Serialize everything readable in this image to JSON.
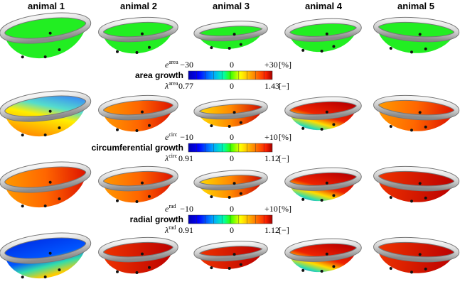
{
  "columns": [
    "animal 1",
    "animal 2",
    "animal 3",
    "animal 4",
    "animal 5"
  ],
  "legends": [
    {
      "title": "area growth",
      "top_symbol": "e",
      "top_sup": "area",
      "top_ticks": [
        "−30",
        "0",
        "+30"
      ],
      "top_unit": "[%]",
      "bottom_symbol": "λ",
      "bottom_sup": "area",
      "bottom_ticks": [
        "0.77",
        "0",
        "1.43"
      ],
      "bottom_unit": "[−]"
    },
    {
      "title": "circumferential growth",
      "top_symbol": "e",
      "top_sup": "circ",
      "top_ticks": [
        "−10",
        "0",
        "+10"
      ],
      "top_unit": "[%]",
      "bottom_symbol": "λ",
      "bottom_sup": "circ",
      "bottom_ticks": [
        "0.91",
        "0",
        "1.12"
      ],
      "bottom_unit": "[−]"
    },
    {
      "title": "radial growth",
      "top_symbol": "e",
      "top_sup": "rad",
      "top_ticks": [
        "−10",
        "0",
        "+10"
      ],
      "top_unit": "[%]",
      "bottom_symbol": "λ",
      "bottom_sup": "rad",
      "bottom_ticks": [
        "0.91",
        "0",
        "1.12"
      ],
      "bottom_unit": "[−]"
    }
  ]
}
